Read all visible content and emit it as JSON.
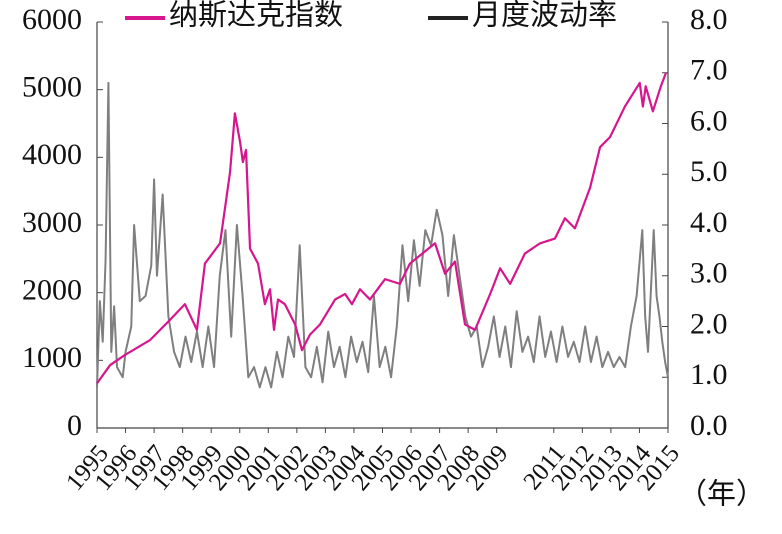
{
  "chart_data": {
    "type": "line",
    "x_label": "（年）",
    "xlim": [
      1995,
      2015
    ],
    "xticks": [
      1995,
      1996,
      1997,
      1998,
      1999,
      2000,
      2001,
      2002,
      2003,
      2004,
      2005,
      2006,
      2007,
      2008,
      2009,
      2011,
      2012,
      2013,
      2014,
      2015
    ],
    "ylim": [
      0,
      6000
    ],
    "yticks": [
      0,
      1000,
      2000,
      3000,
      4000,
      5000,
      6000
    ],
    "y2lim": [
      0,
      8
    ],
    "y2ticks": [
      {
        "value": 0,
        "label": "0.0"
      },
      {
        "value": 1,
        "label": "1.0"
      },
      {
        "value": 2,
        "label": "2.0"
      },
      {
        "value": 3,
        "label": "3.0"
      },
      {
        "value": 4,
        "label": "4.0"
      },
      {
        "value": 5,
        "label": "5.0"
      },
      {
        "value": 6,
        "label": "6.0"
      },
      {
        "value": 7,
        "label": "7.0"
      },
      {
        "value": 8,
        "label": "8.0"
      }
    ],
    "legend": "top",
    "series": [
      {
        "name": "纳斯达克指数",
        "color": "#d6168c",
        "x": [
          1995.0,
          1995.46,
          1995.98,
          1996.86,
          1997.56,
          1998.08,
          1998.5,
          1998.78,
          1999.31,
          1999.66,
          1999.83,
          2000.01,
          2000.11,
          2000.22,
          2000.36,
          2000.64,
          2000.88,
          2001.06,
          2001.2,
          2001.34,
          2001.58,
          2001.94,
          2002.18,
          2002.46,
          2002.81,
          2003.34,
          2003.69,
          2003.93,
          2004.21,
          2004.56,
          2005.09,
          2005.61,
          2005.96,
          2006.49,
          2006.84,
          2007.19,
          2007.54,
          2007.89,
          2008.24,
          2008.77,
          2009.12,
          2009.47,
          2009.99,
          2010.52,
          2011.04,
          2011.39,
          2011.74,
          2012.27,
          2012.62,
          2012.97,
          2013.49,
          2014.01,
          2014.12,
          2014.22,
          2014.47,
          2014.75,
          2014.93
        ],
        "values": [
          660,
          930,
          1080,
          1300,
          1600,
          1830,
          1450,
          2430,
          2730,
          3780,
          4650,
          4230,
          3930,
          4110,
          2650,
          2430,
          1830,
          2050,
          1450,
          1900,
          1830,
          1530,
          1150,
          1380,
          1530,
          1900,
          1980,
          1830,
          2050,
          1900,
          2200,
          2130,
          2430,
          2610,
          2730,
          2280,
          2460,
          1530,
          1450,
          1980,
          2360,
          2130,
          2580,
          2730,
          2800,
          3100,
          2950,
          3550,
          4150,
          4300,
          4750,
          5100,
          4750,
          5050,
          4680,
          5050,
          5250
        ]
      },
      {
        "name": "月度波动率",
        "color": "#7f7f7f",
        "axis": "y2",
        "x": [
          1995.0,
          1995.1,
          1995.2,
          1995.3,
          1995.4,
          1995.5,
          1995.6,
          1995.7,
          1995.9,
          1996.0,
          1996.2,
          1996.3,
          1996.5,
          1996.7,
          1996.9,
          1997.0,
          1997.1,
          1997.3,
          1997.5,
          1997.7,
          1997.9,
          1998.1,
          1998.3,
          1998.5,
          1998.7,
          1998.9,
          1999.1,
          1999.3,
          1999.5,
          1999.7,
          1999.9,
          2000.1,
          2000.3,
          2000.5,
          2000.7,
          2000.9,
          2001.1,
          2001.3,
          2001.5,
          2001.7,
          2001.9,
          2002.1,
          2002.3,
          2002.5,
          2002.7,
          2002.9,
          2003.1,
          2003.3,
          2003.5,
          2003.7,
          2003.9,
          2004.1,
          2004.3,
          2004.5,
          2004.7,
          2004.9,
          2005.1,
          2005.3,
          2005.5,
          2005.7,
          2005.9,
          2006.1,
          2006.3,
          2006.5,
          2006.7,
          2006.9,
          2007.1,
          2007.3,
          2007.5,
          2007.7,
          2007.9,
          2008.1,
          2008.3,
          2008.5,
          2008.7,
          2008.9,
          2009.1,
          2009.3,
          2009.5,
          2009.7,
          2009.9,
          2010.1,
          2010.3,
          2010.5,
          2010.7,
          2010.9,
          2011.1,
          2011.3,
          2011.5,
          2011.7,
          2011.9,
          2012.1,
          2012.3,
          2012.5,
          2012.7,
          2012.9,
          2013.1,
          2013.3,
          2013.5,
          2013.7,
          2013.9,
          2014.1,
          2014.2,
          2014.3,
          2014.5,
          2014.6,
          2014.7,
          2014.8,
          2014.9,
          2015.0
        ],
        "values": [
          0.8,
          2.5,
          1.7,
          3.3,
          6.8,
          1.5,
          2.4,
          1.2,
          1.0,
          1.5,
          2.0,
          4.0,
          2.5,
          2.6,
          3.2,
          4.9,
          3.0,
          4.6,
          2.2,
          1.5,
          1.2,
          1.8,
          1.3,
          1.9,
          1.2,
          2.0,
          1.2,
          3.0,
          3.9,
          1.8,
          4.0,
          2.6,
          1.0,
          1.2,
          0.8,
          1.2,
          0.8,
          1.5,
          1.0,
          1.8,
          1.4,
          3.6,
          1.2,
          1.0,
          1.6,
          0.9,
          1.9,
          1.2,
          1.6,
          1.0,
          1.8,
          1.3,
          1.7,
          1.1,
          2.6,
          1.2,
          1.6,
          1.0,
          2.0,
          3.6,
          2.5,
          3.7,
          2.8,
          3.9,
          3.6,
          4.3,
          3.8,
          2.6,
          3.8,
          3.0,
          2.2,
          1.8,
          2.0,
          1.2,
          1.6,
          2.2,
          1.4,
          2.0,
          1.2,
          2.3,
          1.5,
          1.8,
          1.3,
          2.2,
          1.4,
          1.9,
          1.3,
          2.0,
          1.4,
          1.7,
          1.3,
          2.0,
          1.3,
          1.8,
          1.2,
          1.5,
          1.2,
          1.4,
          1.2,
          2.0,
          2.6,
          3.9,
          2.2,
          1.5,
          3.9,
          2.6,
          2.2,
          1.7,
          1.3,
          1.0
        ]
      }
    ]
  }
}
